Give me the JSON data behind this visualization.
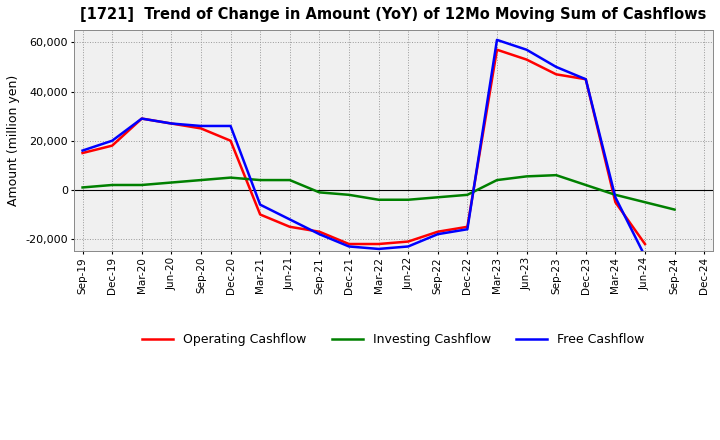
{
  "title": "[1721]  Trend of Change in Amount (YoY) of 12Mo Moving Sum of Cashflows",
  "ylabel": "Amount (million yen)",
  "x_labels": [
    "Sep-19",
    "Dec-19",
    "Mar-20",
    "Jun-20",
    "Sep-20",
    "Dec-20",
    "Mar-21",
    "Jun-21",
    "Sep-21",
    "Dec-21",
    "Mar-22",
    "Jun-22",
    "Sep-22",
    "Dec-22",
    "Mar-23",
    "Jun-23",
    "Sep-23",
    "Dec-23",
    "Mar-24",
    "Jun-24",
    "Sep-24",
    "Dec-24"
  ],
  "operating_cashflow": [
    15000,
    18000,
    29000,
    27000,
    25000,
    20000,
    -10000,
    -15000,
    -17000,
    -22000,
    -22000,
    -21000,
    -17000,
    -15000,
    57000,
    53000,
    47000,
    45000,
    -5000,
    -22000,
    null,
    null
  ],
  "investing_cashflow": [
    1000,
    2000,
    2000,
    3000,
    4000,
    5000,
    4000,
    4000,
    -1000,
    -2000,
    -4000,
    -4000,
    -3000,
    -2000,
    4000,
    5500,
    6000,
    2000,
    -2000,
    -5000,
    -8000,
    null
  ],
  "free_cashflow": [
    16000,
    20000,
    29000,
    27000,
    26000,
    26000,
    -6000,
    -12000,
    -18000,
    -23000,
    -24000,
    -23000,
    -18000,
    -16000,
    61000,
    57000,
    50000,
    45000,
    -3000,
    -27000,
    null,
    null
  ],
  "ylim": [
    -25000,
    65000
  ],
  "yticks": [
    -20000,
    0,
    20000,
    40000,
    60000
  ],
  "operating_color": "#ff0000",
  "investing_color": "#008000",
  "free_color": "#0000ff",
  "background_color": "#ffffff",
  "plot_bg_color": "#f0f0f0",
  "grid_color": "#999999"
}
